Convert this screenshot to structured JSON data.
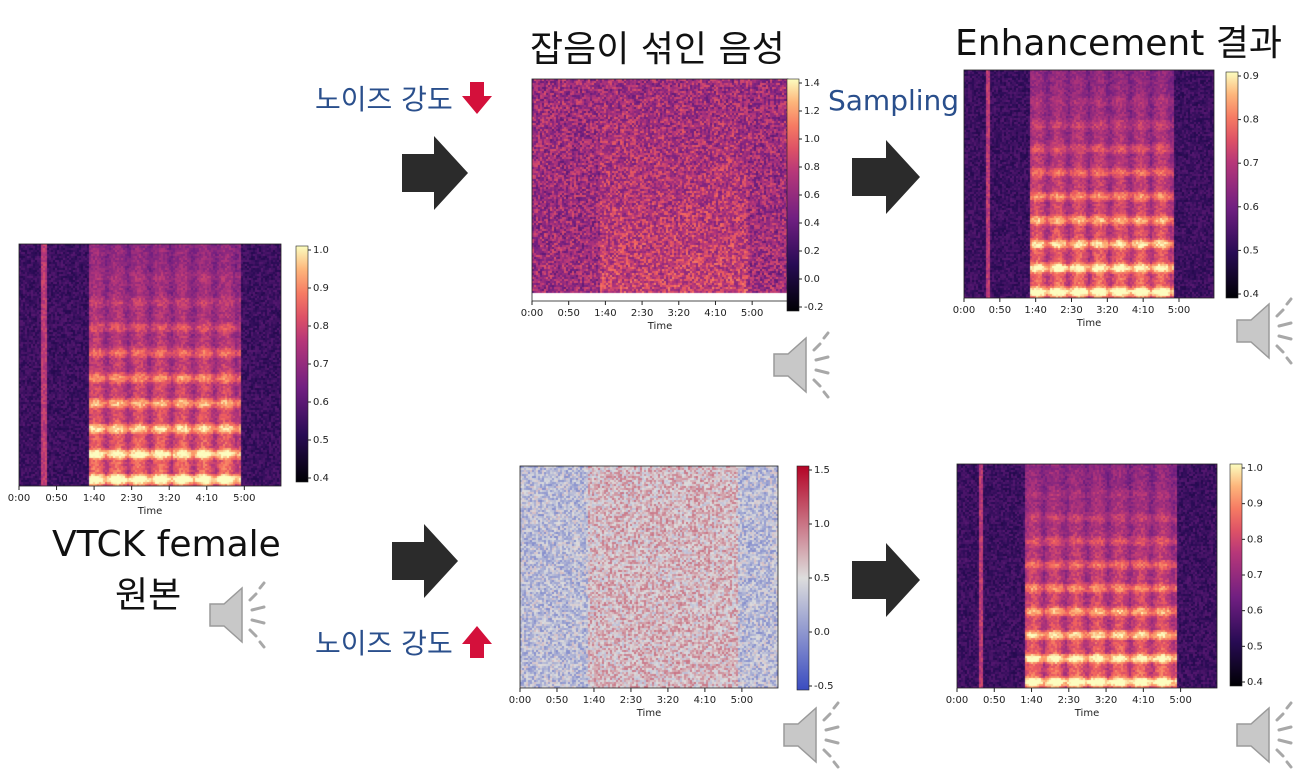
{
  "colors": {
    "blue_label": "#2a4f8c",
    "arrow": "#2b2b2b",
    "down_arrow": "#d4103b",
    "up_arrow": "#d4103b",
    "speaker": "#b8b8b8"
  },
  "labels": {
    "top_center_title": "잡음이 섞인 음성",
    "top_right_title": "Enhancement 결과",
    "noise_down": "노이즈 강도",
    "noise_up": "노이즈 강도",
    "sampling": "Sampling",
    "original_line1": "VTCK female",
    "original_line2": "원본"
  },
  "spectrograms": [
    {
      "id": "original",
      "cmap": "magma",
      "xlabel": "Time",
      "xticks": [
        "0:00",
        "0:50",
        "1:40",
        "2:30",
        "3:20",
        "4:10",
        "5:00"
      ],
      "cticks": [
        "1.0",
        "0.9",
        "0.8",
        "0.7",
        "0.6",
        "0.5",
        "0.4"
      ]
    },
    {
      "id": "noisy_low",
      "cmap": "magma",
      "xlabel": "Time",
      "xticks": [
        "0:00",
        "0:50",
        "1:40",
        "2:30",
        "3:20",
        "4:10",
        "5:00"
      ],
      "cticks": [
        "1.4",
        "1.2",
        "1.0",
        "0.8",
        "0.6",
        "0.4",
        "0.2",
        "0.0",
        "-0.2"
      ]
    },
    {
      "id": "enhanced_low",
      "cmap": "magma",
      "xlabel": "Time",
      "xticks": [
        "0:00",
        "0:50",
        "1:40",
        "2:30",
        "3:20",
        "4:10",
        "5:00"
      ],
      "cticks": [
        "0.9",
        "0.8",
        "0.7",
        "0.6",
        "0.5",
        "0.4"
      ]
    },
    {
      "id": "noisy_high",
      "cmap": "coolwarm",
      "xlabel": "Time",
      "xticks": [
        "0:00",
        "0:50",
        "1:40",
        "2:30",
        "3:20",
        "4:10",
        "5:00"
      ],
      "cticks": [
        "1.5",
        "1.0",
        "0.5",
        "0.0",
        "-0.5"
      ]
    },
    {
      "id": "enhanced_high",
      "cmap": "magma",
      "xlabel": "Time",
      "xticks": [
        "0:00",
        "0:50",
        "1:40",
        "2:30",
        "3:20",
        "4:10",
        "5:00"
      ],
      "cticks": [
        "1.0",
        "0.9",
        "0.8",
        "0.7",
        "0.6",
        "0.5",
        "0.4"
      ]
    }
  ],
  "icons": [
    "right-arrow-icon",
    "down-arrow-icon",
    "up-arrow-icon",
    "speaker-icon"
  ]
}
